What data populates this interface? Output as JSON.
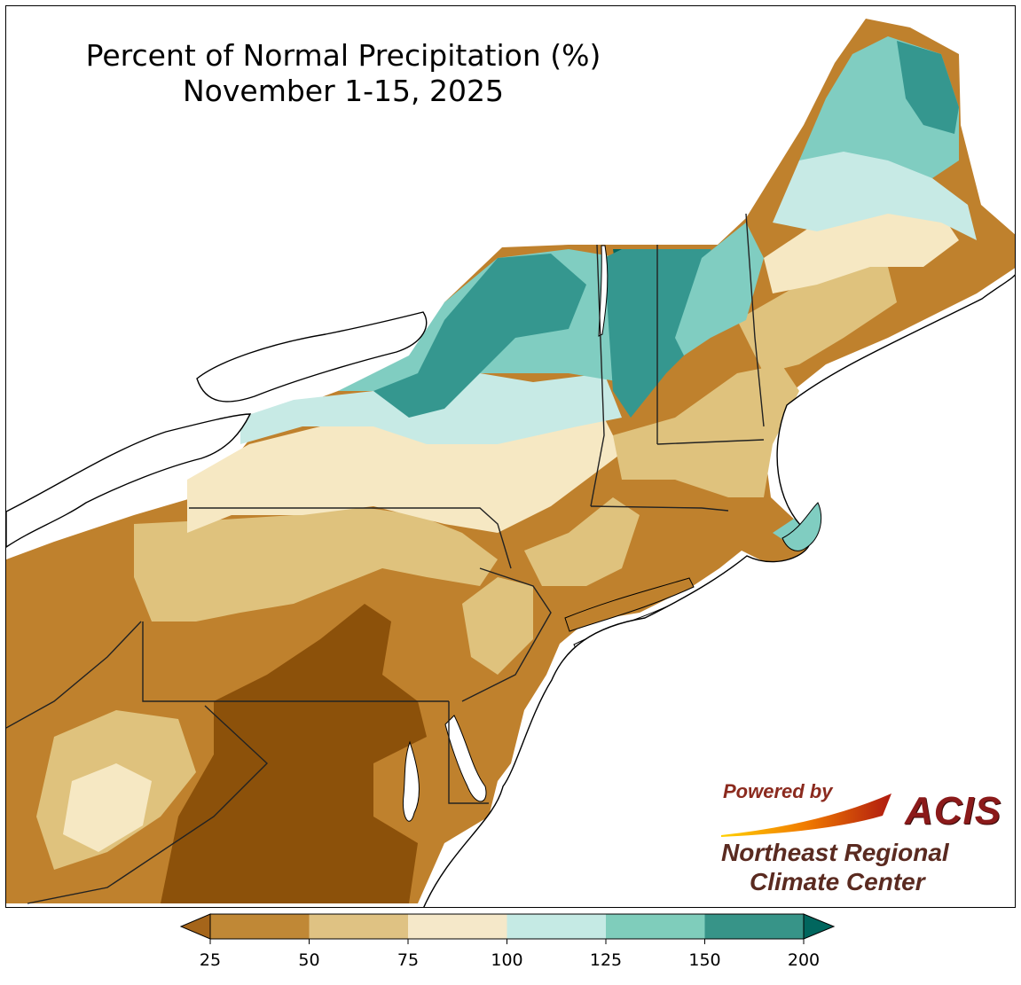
{
  "title": {
    "line1": "Percent of Normal Precipitation (%)",
    "line2": "November 1-15, 2025"
  },
  "logo": {
    "powered_by": "Powered by",
    "acis": "ACIS",
    "org_line1": "Northeast Regional",
    "org_line2": "Climate Center"
  },
  "colorbar": {
    "ticks": [
      "25",
      "50",
      "75",
      "100",
      "125",
      "150",
      "200"
    ],
    "colors": [
      "#a5651a",
      "#c08836",
      "#dfc283",
      "#f5e8c9",
      "#c5eae4",
      "#7fcdbb",
      "#379488",
      "#01665e"
    ],
    "extend": "both"
  },
  "colors": {
    "very_dry": "#8c510a",
    "dry": "#bf812d",
    "below": "#dfc27d",
    "near_below": "#f6e8c3",
    "near_above": "#c7eae5",
    "above": "#80cdc1",
    "wet": "#35978f",
    "very_wet": "#01665e",
    "water": "#ffffff",
    "border": "#222222"
  }
}
